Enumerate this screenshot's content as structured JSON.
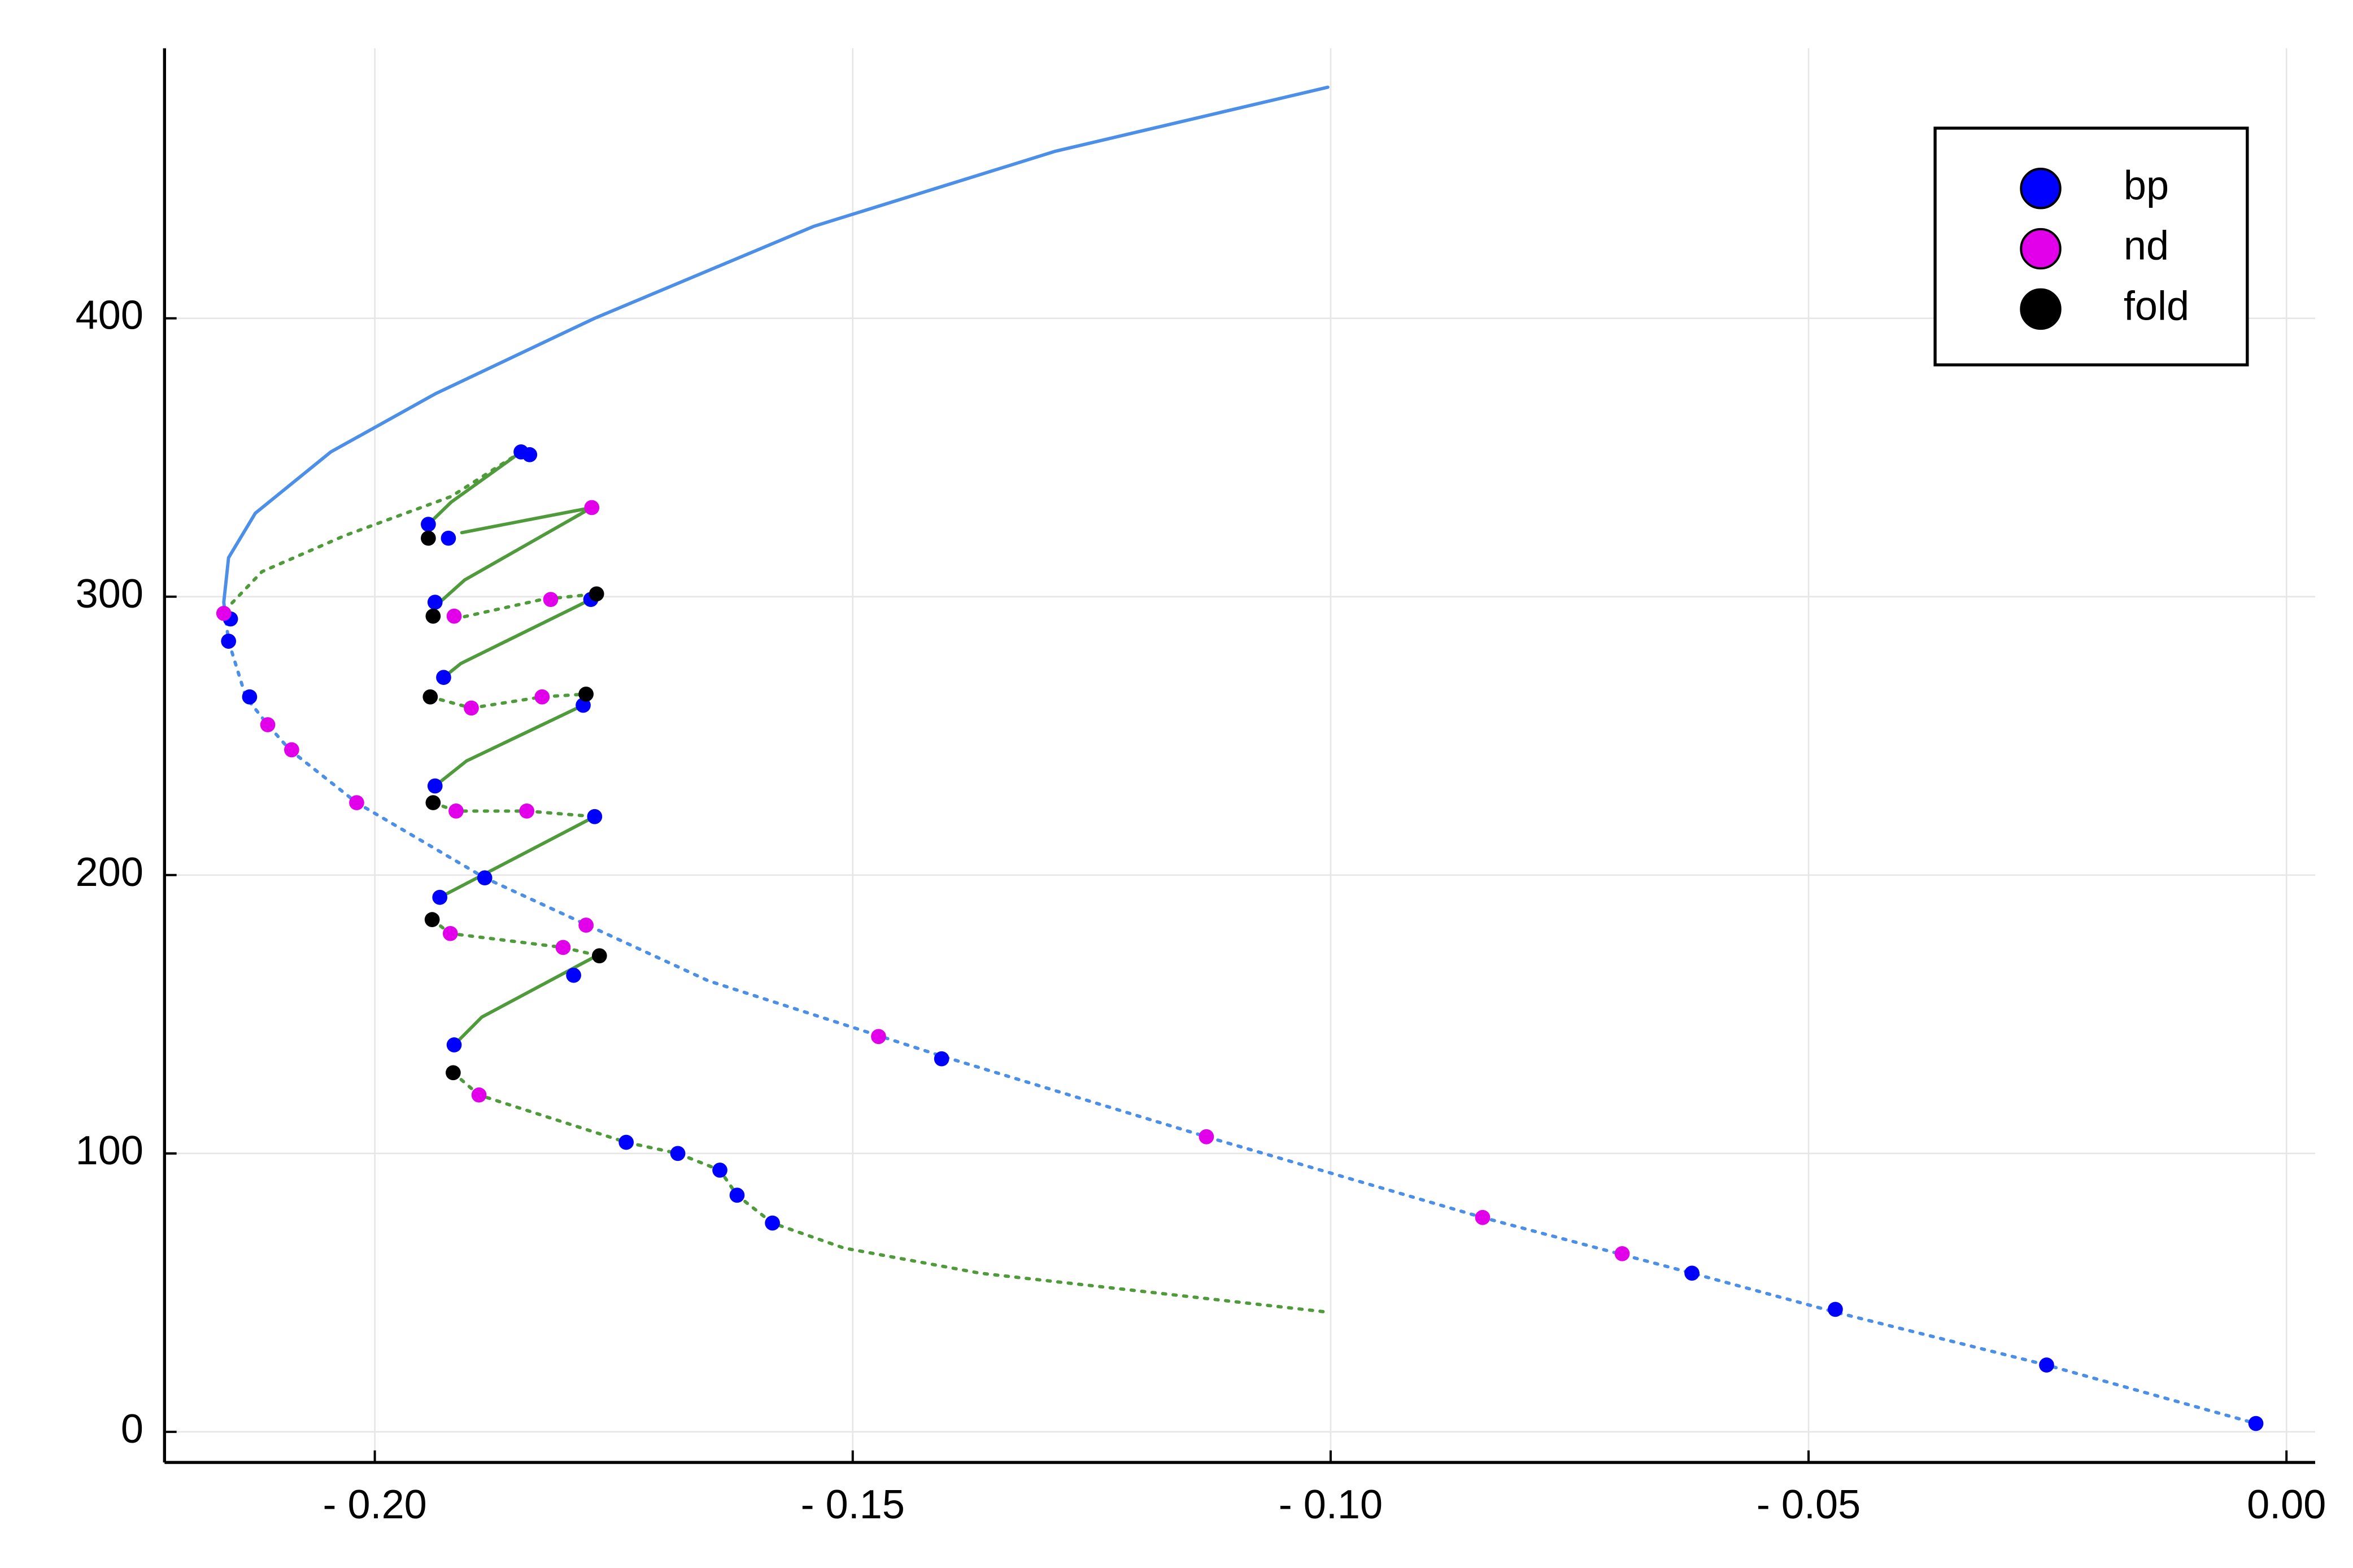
{
  "chart_data": {
    "type": "scatter",
    "xlim": [
      -0.222,
      0.003
    ],
    "ylim": [
      -11,
      497
    ],
    "xticks": [
      {
        "value": -0.2,
        "label": "- 0.20"
      },
      {
        "value": -0.15,
        "label": "- 0.15"
      },
      {
        "value": -0.1,
        "label": "- 0.10"
      },
      {
        "value": -0.05,
        "label": "- 0.05"
      },
      {
        "value": 0,
        "label": "0.00"
      }
    ],
    "yticks": [
      0,
      100,
      200,
      300,
      400
    ],
    "grid": true,
    "legend": "top-right",
    "lines": [
      {
        "color": "#4c8fe8",
        "style": "solid",
        "x": [
          -0.1003,
          -0.1288,
          -0.1541,
          -0.177,
          -0.1936,
          -0.2046,
          -0.2125,
          -0.2153,
          -0.2158,
          -0.2157
        ],
        "values": [
          483,
          460,
          433,
          400,
          373,
          352,
          330,
          314,
          298,
          295
        ]
      },
      {
        "color": "#4c8fe8",
        "style": "dotted",
        "x": [
          -0.2157,
          -0.2153,
          -0.2135,
          -0.2112,
          -0.2089,
          -0.2019,
          -0.1885,
          -0.1651,
          -0.1407,
          -0.113,
          -0.0841,
          -0.0622,
          -0.0472,
          -0.0251,
          -0.0032
        ],
        "values": [
          295,
          284,
          264,
          254,
          245,
          226,
          199,
          162,
          135,
          106,
          77,
          57,
          43,
          24,
          3
        ]
      },
      {
        "color": "#4f9a3a",
        "style": "dotted",
        "x": [
          -0.2157,
          -0.2118,
          -0.2031,
          -0.192,
          -0.1847
        ],
        "values": [
          295,
          309,
          322,
          336,
          352
        ]
      },
      {
        "color": "#4f9a3a",
        "style": "solid",
        "x": [
          -0.1847,
          -0.192,
          -0.1944
        ],
        "values": [
          352,
          334,
          326
        ]
      },
      {
        "color": "#4f9a3a",
        "style": "solid",
        "x": [
          -0.1909,
          -0.1773
        ],
        "values": [
          323,
          332
        ]
      },
      {
        "color": "#4f9a3a",
        "style": "solid",
        "x": [
          -0.1773,
          -0.1906,
          -0.1932
        ],
        "values": [
          332,
          306,
          298
        ]
      },
      {
        "color": "#4f9a3a",
        "style": "solid",
        "x": [
          -0.1774,
          -0.191,
          -0.1928
        ],
        "values": [
          299,
          276,
          271
        ]
      },
      {
        "color": "#4f9a3a",
        "style": "solid",
        "x": [
          -0.1782,
          -0.1904,
          -0.1937
        ],
        "values": [
          261,
          241,
          232
        ]
      },
      {
        "color": "#4f9a3a",
        "style": "solid",
        "x": [
          -0.177,
          -0.1904,
          -0.1932
        ],
        "values": [
          221,
          197,
          192
        ]
      },
      {
        "color": "#4f9a3a",
        "style": "solid",
        "x": [
          -0.1768,
          -0.1888,
          -0.1917
        ],
        "values": [
          171,
          149,
          139
        ]
      },
      {
        "color": "#4f9a3a",
        "style": "dotted",
        "x": [
          -0.1917,
          -0.1825,
          -0.1768
        ],
        "values": [
          292,
          299,
          301
        ]
      },
      {
        "color": "#4f9a3a",
        "style": "dotted",
        "x": [
          -0.1942,
          -0.1899,
          -0.1825,
          -0.1779
        ],
        "values": [
          264,
          260,
          264,
          265
        ]
      },
      {
        "color": "#4f9a3a",
        "style": "dotted",
        "x": [
          -0.1939,
          -0.1915,
          -0.1841,
          -0.177
        ],
        "values": [
          226,
          223,
          223,
          221
        ]
      },
      {
        "color": "#4f9a3a",
        "style": "dotted",
        "x": [
          -0.194,
          -0.1921,
          -0.1803,
          -0.1765
        ],
        "values": [
          184,
          179,
          174,
          171
        ]
      },
      {
        "color": "#4f9a3a",
        "style": "dotted",
        "x": [
          -0.1918,
          -0.1891,
          -0.1737,
          -0.1683,
          -0.1639,
          -0.1621,
          -0.1584,
          -0.1509,
          -0.1367,
          -0.1003
        ],
        "values": [
          129,
          121,
          104,
          100,
          94,
          85,
          75,
          66,
          57,
          43
        ]
      }
    ],
    "series": [
      {
        "name": "bp",
        "color": "#0000ff",
        "x": [
          -0.2151,
          -0.2153,
          -0.2131,
          -0.1885,
          -0.1407,
          -0.0622,
          -0.0472,
          -0.0251,
          -0.0032,
          -0.1847,
          -0.1838,
          -0.1944,
          -0.1923,
          -0.1937,
          -0.1774,
          -0.1928,
          -0.1782,
          -0.1937,
          -0.177,
          -0.1932,
          -0.1792,
          -0.1917,
          -0.1737,
          -0.1683,
          -0.1639,
          -0.1621,
          -0.1584
        ],
        "values": [
          292,
          284,
          264,
          199,
          134,
          57,
          44,
          24,
          3,
          352,
          351,
          326,
          321,
          298,
          299,
          271,
          261,
          232,
          221,
          192,
          164,
          139,
          104,
          100,
          94,
          85,
          75
        ]
      },
      {
        "name": "nd",
        "color": "#e100e9",
        "x": [
          -0.2158,
          -0.2112,
          -0.2087,
          -0.2019,
          -0.1473,
          -0.113,
          -0.0841,
          -0.0695,
          -0.1773,
          -0.1816,
          -0.1917,
          -0.1899,
          -0.1825,
          -0.1915,
          -0.1841,
          -0.1779,
          -0.1921,
          -0.1803,
          -0.1891
        ],
        "values": [
          294,
          254,
          245,
          226,
          142,
          106,
          77,
          64,
          332,
          299,
          293,
          260,
          264,
          223,
          223,
          182,
          179,
          174,
          121
        ]
      },
      {
        "name": "fold",
        "color": "#000000",
        "x": [
          -0.1944,
          -0.1768,
          -0.1939,
          -0.1942,
          -0.1779,
          -0.1939,
          -0.194,
          -0.1765,
          -0.1918
        ],
        "values": [
          321,
          301,
          293,
          264,
          265,
          226,
          184,
          171,
          129
        ]
      }
    ]
  }
}
